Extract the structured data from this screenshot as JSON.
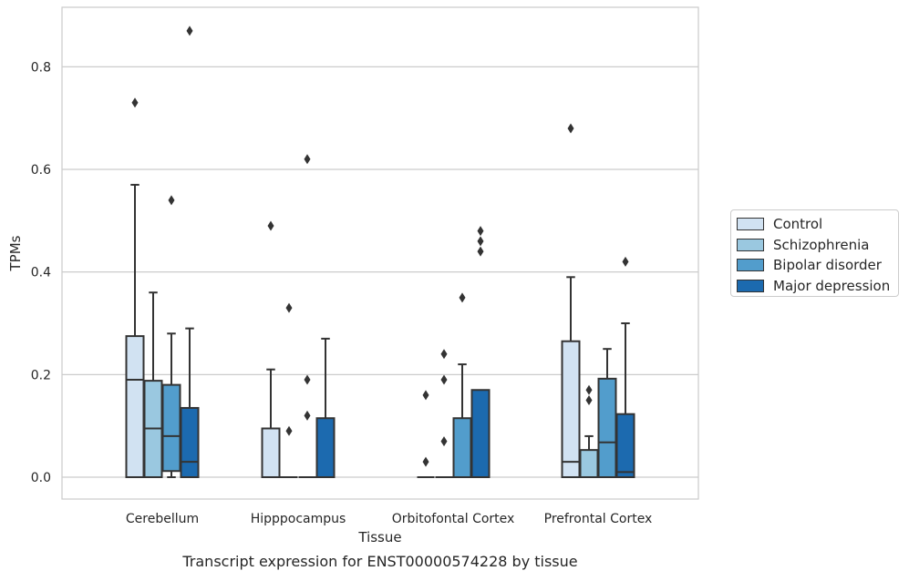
{
  "chart_data": {
    "type": "box",
    "title": "Transcript expression for ENST00000574228 by tissue",
    "xlabel": "Tissue",
    "ylabel": "TPMs",
    "ylim": [
      -0.043,
      0.92
    ],
    "yticks": [
      "0.0",
      "0.2",
      "0.4",
      "0.6",
      "0.8"
    ],
    "ytick_values": [
      0,
      0.2,
      0.4,
      0.6,
      0.8
    ],
    "grid": "horizontal",
    "legend_placement": "right",
    "categories": [
      "Cerebellum",
      "Hipppocampus",
      "Orbitofontal Cortex",
      "Prefrontal Cortex"
    ],
    "series": [
      {
        "name": "Control",
        "color": "#d1e2f2",
        "boxes": [
          {
            "min": 0,
            "q1": 0,
            "median": 0.19,
            "q3": 0.275,
            "max": 0.57,
            "outliers": [
              0.73
            ]
          },
          {
            "min": 0,
            "q1": 0,
            "median": 0,
            "q3": 0.095,
            "max": 0.21,
            "outliers": [
              0.49
            ]
          },
          {
            "min": 0,
            "q1": 0,
            "median": 0,
            "q3": 0,
            "max": 0,
            "outliers": [
              0.03,
              0.16
            ]
          },
          {
            "min": 0,
            "q1": 0,
            "median": 0.03,
            "q3": 0.265,
            "max": 0.39,
            "outliers": [
              0.68
            ]
          }
        ]
      },
      {
        "name": "Schizophrenia",
        "color": "#9ac8e0",
        "boxes": [
          {
            "min": 0,
            "q1": 0,
            "median": 0.095,
            "q3": 0.188,
            "max": 0.36,
            "outliers": []
          },
          {
            "min": 0,
            "q1": 0,
            "median": 0,
            "q3": 0,
            "max": 0,
            "outliers": [
              0.09,
              0.33
            ]
          },
          {
            "min": 0,
            "q1": 0,
            "median": 0,
            "q3": 0,
            "max": 0,
            "outliers": [
              0.07,
              0.19,
              0.24
            ]
          },
          {
            "min": 0,
            "q1": 0,
            "median": 0,
            "q3": 0.053,
            "max": 0.08,
            "outliers": [
              0.15,
              0.17
            ]
          }
        ]
      },
      {
        "name": "Bipolar disorder",
        "color": "#529dcc",
        "boxes": [
          {
            "min": 0,
            "q1": 0.012,
            "median": 0.08,
            "q3": 0.18,
            "max": 0.28,
            "outliers": [
              0.54
            ]
          },
          {
            "min": 0,
            "q1": 0,
            "median": 0,
            "q3": 0,
            "max": 0,
            "outliers": [
              0.12,
              0.19,
              0.62
            ]
          },
          {
            "min": 0,
            "q1": 0,
            "median": 0,
            "q3": 0.115,
            "max": 0.22,
            "outliers": [
              0.35
            ]
          },
          {
            "min": 0,
            "q1": 0,
            "median": 0.068,
            "q3": 0.192,
            "max": 0.25,
            "outliers": []
          }
        ]
      },
      {
        "name": "Major depression",
        "color": "#1c6aaf",
        "boxes": [
          {
            "min": 0,
            "q1": 0,
            "median": 0.03,
            "q3": 0.135,
            "max": 0.29,
            "outliers": [
              0.87
            ]
          },
          {
            "min": 0,
            "q1": 0,
            "median": 0,
            "q3": 0.115,
            "max": 0.27,
            "outliers": []
          },
          {
            "min": 0,
            "q1": 0,
            "median": 0,
            "q3": 0.17,
            "max": 0.17,
            "outliers": [
              0.44,
              0.46,
              0.48
            ]
          },
          {
            "min": 0,
            "q1": 0,
            "median": 0.01,
            "q3": 0.123,
            "max": 0.3,
            "outliers": [
              0.42
            ]
          }
        ]
      }
    ]
  }
}
